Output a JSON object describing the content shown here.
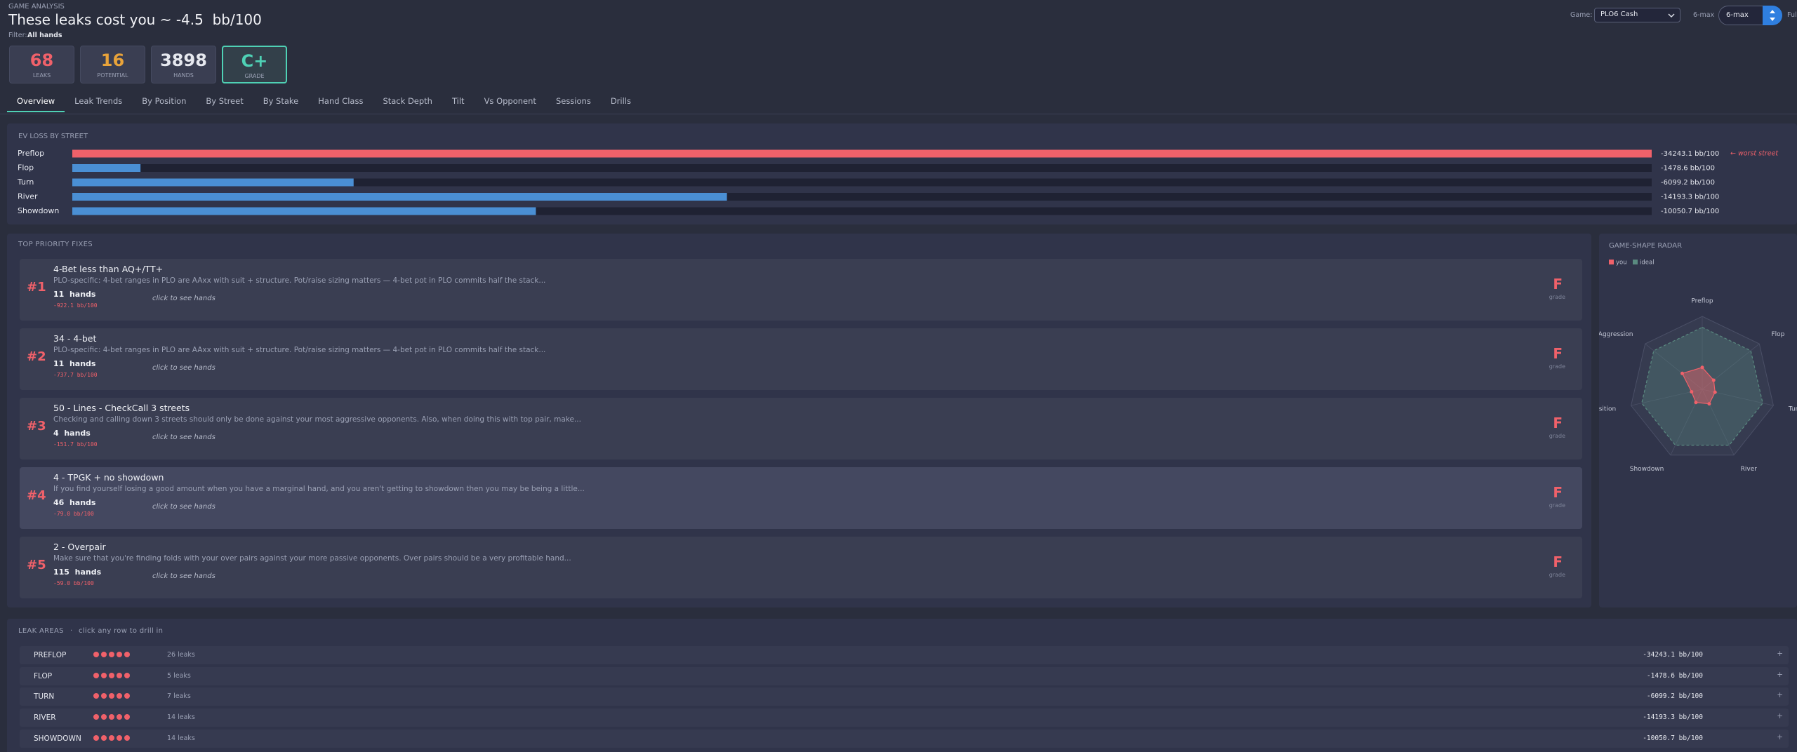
{
  "header": {
    "eyebrow": "GAME ANALYSIS",
    "title": "These leaks cost you ~ -4.5  bb/100",
    "filter_label": "Filter:",
    "filter_value": "All hands"
  },
  "controls": {
    "game_label": "Game:",
    "game_value": "PLO6 Cash",
    "table_label": "6-max",
    "table_value": "6-max",
    "next_option": "Full"
  },
  "stats": [
    {
      "value": "68",
      "label": "LEAKS",
      "color": "#f0616a"
    },
    {
      "value": "16",
      "label": "POTENTIAL",
      "color": "#e8a33a"
    },
    {
      "value": "3898",
      "label": "HANDS",
      "color": "#e6e8ef"
    },
    {
      "value": "C+",
      "label": "GRADE",
      "color": "#4fd1b5"
    }
  ],
  "tabs": [
    "Overview",
    "Leak Trends",
    "By Position",
    "By Street",
    "By Stake",
    "Hand Class",
    "Stack Depth",
    "Tilt",
    "Vs Opponent",
    "Sessions",
    "Drills"
  ],
  "chart_data": [
    {
      "type": "bar",
      "orientation": "horizontal",
      "title": "EV LOSS BY STREET",
      "categories": [
        "Preflop",
        "Flop",
        "Turn",
        "River",
        "Showdown"
      ],
      "values": [
        -34243.1,
        -1478.6,
        -6099.2,
        -14193.3,
        -10050.7
      ],
      "value_labels": [
        "-34243.1 bb/100",
        "-1478.6 bb/100",
        "-6099.2 bb/100",
        "-14193.3 bb/100",
        "-10050.7 bb/100"
      ],
      "colors": [
        "#f0616a",
        "#4a8fd4",
        "#4a8fd4",
        "#4a8fd4",
        "#4a8fd4"
      ],
      "xlim": [
        0,
        -34243.1
      ],
      "annotation": "← worst street"
    },
    {
      "type": "radar",
      "title": "GAME-SHAPE RADAR",
      "categories": [
        "Preflop",
        "Flop",
        "Turn",
        "River",
        "Showdown",
        "Position",
        "Aggression"
      ],
      "rlim": [
        0,
        100
      ],
      "series": [
        {
          "name": "you",
          "color": "#f0616a",
          "values": [
            30,
            20,
            18,
            22,
            20,
            15,
            35
          ]
        },
        {
          "name": "ideal",
          "color": "#5a8a80",
          "dashed": true,
          "values": [
            85,
            85,
            85,
            85,
            85,
            85,
            85
          ]
        }
      ]
    }
  ],
  "fixes": {
    "title": "TOP PRIORITY FIXES",
    "items": [
      {
        "rank": "#1",
        "title": "4-Bet less than AQ+/TT+",
        "description": "PLO-specific: 4-bet ranges in PLO are AAxx with suit + structure. Pot/raise sizing matters — 4-bet pot in PLO commits half the stack...",
        "hands": "11  hands",
        "ev": "-922.1 bb/100",
        "action": "click to see hands",
        "grade": "F",
        "grade_label": "grade"
      },
      {
        "rank": "#2",
        "title": "34 - 4-bet",
        "description": "PLO-specific: 4-bet ranges in PLO are AAxx with suit + structure. Pot/raise sizing matters — 4-bet pot in PLO commits half the stack...",
        "hands": "11  hands",
        "ev": "-737.7 bb/100",
        "action": "click to see hands",
        "grade": "F",
        "grade_label": "grade"
      },
      {
        "rank": "#3",
        "title": "50 - Lines - CheckCall 3 streets",
        "description": "Checking and calling down 3 streets should only be done against your most aggressive opponents. Also, when doing this with top pair, make...",
        "hands": "4  hands",
        "ev": "-151.7 bb/100",
        "action": "click to see hands",
        "grade": "F",
        "grade_label": "grade"
      },
      {
        "rank": "#4",
        "title": "4 - TPGK + no showdown",
        "description": "If you find yourself losing a good amount when you have a marginal hand, and you aren't getting to showdown then you may be being a little...",
        "hands": "46  hands",
        "ev": "-79.0 bb/100",
        "action": "click to see hands",
        "grade": "F",
        "grade_label": "grade"
      },
      {
        "rank": "#5",
        "title": "2 - Overpair",
        "description": "Make sure that you're finding folds with your over pairs against your more passive opponents. Over pairs should be a very profitable hand...",
        "hands": "115  hands",
        "ev": "-59.0 bb/100",
        "action": "click to see hands",
        "grade": "F",
        "grade_label": "grade"
      }
    ]
  },
  "leak_areas": {
    "title": "LEAK AREAS",
    "separator": "·",
    "hint": "click any row to drill in",
    "rows": [
      {
        "name": "PREFLOP",
        "severity": 5,
        "leaks": "26 leaks",
        "ev": "-34243.1 bb/100",
        "expand": "+"
      },
      {
        "name": "FLOP",
        "severity": 5,
        "leaks": "5 leaks",
        "ev": "-1478.6 bb/100",
        "expand": "+"
      },
      {
        "name": "TURN",
        "severity": 5,
        "leaks": "7 leaks",
        "ev": "-6099.2 bb/100",
        "expand": "+"
      },
      {
        "name": "RIVER",
        "severity": 5,
        "leaks": "14 leaks",
        "ev": "-14193.3 bb/100",
        "expand": "+"
      },
      {
        "name": "SHOWDOWN",
        "severity": 5,
        "leaks": "14 leaks",
        "ev": "-10050.7 bb/100",
        "expand": "+"
      }
    ]
  }
}
